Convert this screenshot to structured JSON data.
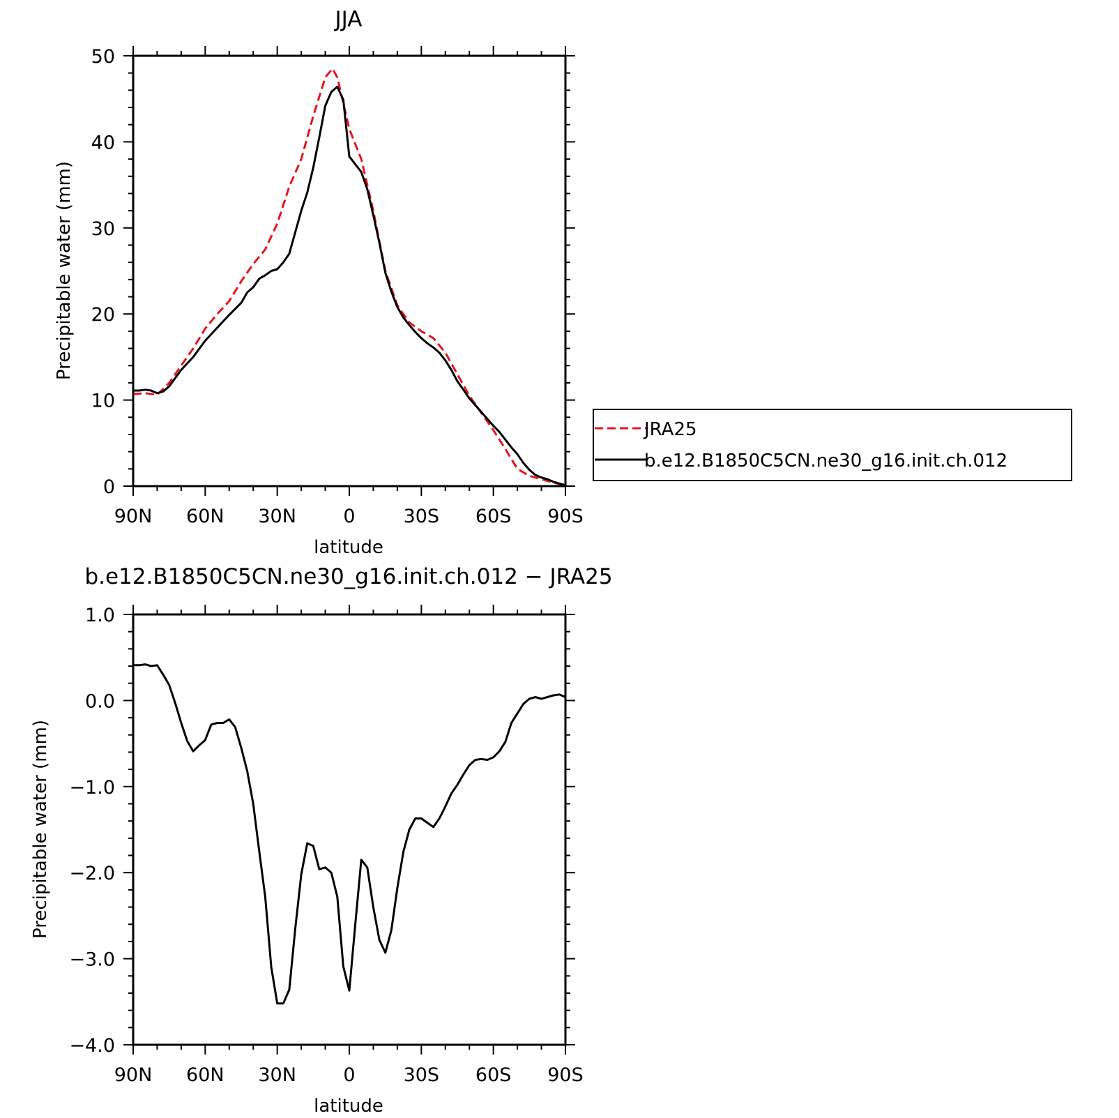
{
  "chart_data": [
    {
      "type": "line",
      "title": "JJA",
      "xlabel": "latitude",
      "ylabel": "Precipitable water (mm)",
      "xlim": [
        90,
        -90
      ],
      "ylim": [
        0,
        50
      ],
      "x_ticks": [
        {
          "value": 90,
          "label": "90N"
        },
        {
          "value": 60,
          "label": "60N"
        },
        {
          "value": 30,
          "label": "30N"
        },
        {
          "value": 0,
          "label": "0"
        },
        {
          "value": -30,
          "label": "30S"
        },
        {
          "value": -60,
          "label": "60S"
        },
        {
          "value": -90,
          "label": "90S"
        }
      ],
      "y_ticks": [
        {
          "value": 0,
          "label": "0"
        },
        {
          "value": 10,
          "label": "10"
        },
        {
          "value": 20,
          "label": "20"
        },
        {
          "value": 30,
          "label": "30"
        },
        {
          "value": 40,
          "label": "40"
        },
        {
          "value": 50,
          "label": "50"
        }
      ],
      "grid": false,
      "legend_position": "outside-right",
      "series": [
        {
          "name": "JRA25",
          "color": "#e8141c",
          "dash": "dashed",
          "x": [
            90,
            85,
            80,
            75,
            70,
            65,
            60,
            55,
            50,
            45,
            40,
            35,
            30,
            25,
            20,
            15,
            10,
            7,
            5,
            0,
            -5,
            -10,
            -15,
            -20,
            -25,
            -30,
            -35,
            -40,
            -45,
            -50,
            -55,
            -60,
            -65,
            -70,
            -75,
            -80,
            -85,
            -90
          ],
          "y": [
            10.7,
            10.8,
            10.6,
            12.0,
            14.0,
            16.0,
            18.3,
            20.0,
            21.5,
            23.8,
            25.8,
            27.5,
            30.5,
            34.8,
            38.0,
            43.0,
            47.5,
            48.5,
            47.5,
            41.5,
            38.0,
            32.0,
            25.0,
            21.0,
            19.0,
            18.0,
            17.2,
            15.5,
            13.0,
            10.5,
            8.5,
            6.5,
            4.3,
            2.0,
            1.2,
            0.8,
            0.4,
            0.1
          ]
        },
        {
          "name": "b.e12.B1850C5CN.ne30_g16.init.ch.012",
          "color": "#000000",
          "dash": "solid",
          "x": [
            90,
            87.5,
            85,
            82.5,
            80,
            77.5,
            75,
            70,
            65,
            60,
            55,
            50,
            45,
            42.5,
            40,
            37.5,
            35,
            32.5,
            30,
            27.5,
            25,
            22.5,
            20,
            17.5,
            15,
            12.5,
            10,
            7.5,
            5,
            2.5,
            0,
            -2.5,
            -5,
            -7.5,
            -10,
            -12.5,
            -15,
            -17.5,
            -20,
            -22.5,
            -25,
            -27.5,
            -30,
            -32.5,
            -35,
            -37.5,
            -40,
            -42.5,
            -45,
            -47.5,
            -50,
            -52.5,
            -55,
            -57.5,
            -60,
            -62.5,
            -65,
            -67.5,
            -70,
            -72.5,
            -75,
            -77.5,
            -80,
            -82.5,
            -85,
            -87.5,
            -90
          ],
          "y": [
            11.1,
            11.1,
            11.2,
            11.1,
            10.8,
            11.0,
            11.6,
            13.5,
            15.0,
            16.9,
            18.4,
            19.9,
            21.3,
            22.5,
            23.1,
            24.1,
            24.5,
            25.0,
            25.2,
            26.0,
            27.0,
            29.5,
            32.0,
            34.1,
            37.0,
            40.5,
            44.2,
            45.8,
            46.4,
            44.9,
            38.3,
            37.4,
            36.5,
            34.5,
            31.5,
            28.3,
            24.8,
            22.6,
            20.8,
            19.6,
            18.7,
            17.9,
            17.2,
            16.6,
            16.1,
            15.5,
            14.6,
            13.5,
            12.2,
            11.2,
            10.2,
            9.4,
            8.6,
            7.8,
            7.0,
            6.3,
            5.4,
            4.5,
            3.7,
            2.7,
            1.9,
            1.3,
            1.0,
            0.8,
            0.5,
            0.3,
            0.1
          ]
        }
      ]
    },
    {
      "type": "line",
      "title": "b.e12.B1850C5CN.ne30_g16.init.ch.012 − JRA25",
      "xlabel": "latitude",
      "ylabel": "Precipitable water (mm)",
      "xlim": [
        90,
        -90
      ],
      "ylim": [
        -4.0,
        1.0
      ],
      "x_ticks": [
        {
          "value": 90,
          "label": "90N"
        },
        {
          "value": 60,
          "label": "60N"
        },
        {
          "value": 30,
          "label": "30N"
        },
        {
          "value": 0,
          "label": "0"
        },
        {
          "value": -30,
          "label": "30S"
        },
        {
          "value": -60,
          "label": "60S"
        },
        {
          "value": -90,
          "label": "90S"
        }
      ],
      "y_ticks": [
        {
          "value": 1.0,
          "label": "1.0"
        },
        {
          "value": 0.0,
          "label": "0.0"
        },
        {
          "value": -1.0,
          "label": "−1.0"
        },
        {
          "value": -2.0,
          "label": "−2.0"
        },
        {
          "value": -3.0,
          "label": "−3.0"
        },
        {
          "value": -4.0,
          "label": "−4.0"
        }
      ],
      "grid": false,
      "series": [
        {
          "color": "#000000",
          "dash": "solid",
          "x": [
            90,
            87.5,
            85,
            82.5,
            80,
            77.5,
            75,
            72.5,
            70,
            67.5,
            65,
            62.5,
            60,
            57.5,
            55,
            52.5,
            50,
            47.5,
            45,
            42.5,
            40,
            37.5,
            35,
            32.5,
            30,
            27.5,
            25,
            22.5,
            20,
            17.5,
            15,
            12.5,
            10,
            7.5,
            5,
            2.5,
            0,
            -2.5,
            -5,
            -7.5,
            -10,
            -12.5,
            -15,
            -17.5,
            -20,
            -22.5,
            -25,
            -27.5,
            -30,
            -32.5,
            -35,
            -37.5,
            -40,
            -42.5,
            -45,
            -47.5,
            -50,
            -52.5,
            -55,
            -57.5,
            -60,
            -62.5,
            -65,
            -67.5,
            -70,
            -72.5,
            -75,
            -77.5,
            -80,
            -82.5,
            -85,
            -87.5,
            -90
          ],
          "y": [
            0.41,
            0.41,
            0.42,
            0.4,
            0.41,
            0.3,
            0.18,
            -0.03,
            -0.26,
            -0.47,
            -0.59,
            -0.52,
            -0.46,
            -0.28,
            -0.26,
            -0.26,
            -0.22,
            -0.31,
            -0.55,
            -0.82,
            -1.2,
            -1.75,
            -2.28,
            -3.1,
            -3.52,
            -3.52,
            -3.36,
            -2.65,
            -2.02,
            -1.66,
            -1.69,
            -1.96,
            -1.94,
            -2.0,
            -2.28,
            -3.09,
            -3.37,
            -2.6,
            -1.85,
            -1.94,
            -2.4,
            -2.78,
            -2.93,
            -2.67,
            -2.18,
            -1.76,
            -1.5,
            -1.37,
            -1.37,
            -1.42,
            -1.47,
            -1.37,
            -1.23,
            -1.08,
            -0.98,
            -0.86,
            -0.75,
            -0.69,
            -0.68,
            -0.69,
            -0.66,
            -0.59,
            -0.48,
            -0.26,
            -0.15,
            -0.04,
            0.02,
            0.04,
            0.02,
            0.04,
            0.06,
            0.07,
            0.04
          ]
        }
      ]
    }
  ]
}
